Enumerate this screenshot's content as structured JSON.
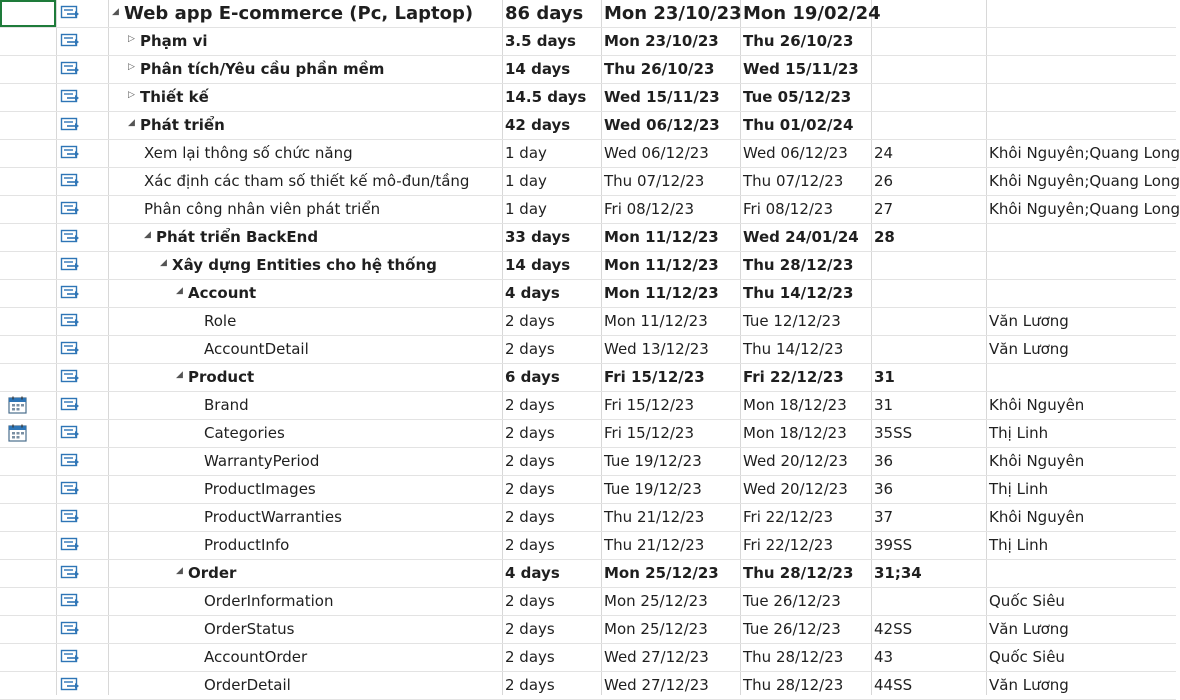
{
  "tasks": [
    {
      "name": "Web app E-commerce (Pc, Laptop)",
      "duration": "86 days",
      "start": "Mon 23/10/23",
      "finish": "Mon 19/02/24",
      "pred": "",
      "res": "",
      "summary": true,
      "toggle": "◢",
      "level": 0
    },
    {
      "name": "Phạm vi",
      "duration": "3.5 days",
      "start": "Mon 23/10/23",
      "finish": "Thu 26/10/23",
      "pred": "",
      "res": "",
      "summary": true,
      "toggle": "▷",
      "level": 1
    },
    {
      "name": "Phân tích/Yêu cầu phần mềm",
      "duration": "14 days",
      "start": "Thu 26/10/23",
      "finish": "Wed 15/11/23",
      "pred": "",
      "res": "",
      "summary": true,
      "toggle": "▷",
      "level": 1
    },
    {
      "name": "Thiết kế",
      "duration": "14.5 days",
      "start": "Wed 15/11/23",
      "finish": "Tue 05/12/23",
      "pred": "",
      "res": "",
      "summary": true,
      "toggle": "▷",
      "level": 1
    },
    {
      "name": "Phát triển",
      "duration": "42 days",
      "start": "Wed 06/12/23",
      "finish": "Thu 01/02/24",
      "pred": "",
      "res": "",
      "summary": true,
      "toggle": "◢",
      "level": 1
    },
    {
      "name": "Xem lại thông số chức năng",
      "duration": "1 day",
      "start": "Wed 06/12/23",
      "finish": "Wed 06/12/23",
      "pred": "24",
      "res": "Khôi Nguyên;Quang Long",
      "summary": false,
      "toggle": "",
      "level": 2
    },
    {
      "name": "Xác định các tham số thiết kế mô-đun/tầng",
      "duration": "1 day",
      "start": "Thu 07/12/23",
      "finish": "Thu 07/12/23",
      "pred": "26",
      "res": "Khôi Nguyên;Quang Long",
      "summary": false,
      "toggle": "",
      "level": 2
    },
    {
      "name": "Phân công nhân viên phát triển",
      "duration": "1 day",
      "start": "Fri 08/12/23",
      "finish": "Fri 08/12/23",
      "pred": "27",
      "res": "Khôi Nguyên;Quang Long",
      "summary": false,
      "toggle": "",
      "level": 2
    },
    {
      "name": "Phát triển BackEnd",
      "duration": "33 days",
      "start": "Mon 11/12/23",
      "finish": "Wed 24/01/24",
      "pred": "28",
      "res": "",
      "summary": true,
      "toggle": "◢",
      "level": 2
    },
    {
      "name": "Xây dựng Entities cho hệ thống",
      "duration": "14 days",
      "start": "Mon 11/12/23",
      "finish": "Thu 28/12/23",
      "pred": "",
      "res": "",
      "summary": true,
      "toggle": "◢",
      "level": 3
    },
    {
      "name": "Account",
      "duration": "4 days",
      "start": "Mon 11/12/23",
      "finish": "Thu 14/12/23",
      "pred": "",
      "res": "",
      "summary": true,
      "toggle": "◢",
      "level": 4
    },
    {
      "name": "Role",
      "duration": "2 days",
      "start": "Mon 11/12/23",
      "finish": "Tue 12/12/23",
      "pred": "",
      "res": "Văn Lương",
      "summary": false,
      "toggle": "",
      "level": 5
    },
    {
      "name": "AccountDetail",
      "duration": "2 days",
      "start": "Wed 13/12/23",
      "finish": "Thu 14/12/23",
      "pred": "",
      "res": "Văn Lương",
      "summary": false,
      "toggle": "",
      "level": 5
    },
    {
      "name": "Product",
      "duration": "6 days",
      "start": "Fri 15/12/23",
      "finish": "Fri 22/12/23",
      "pred": "31",
      "res": "",
      "summary": true,
      "toggle": "◢",
      "level": 4
    },
    {
      "name": "Brand",
      "duration": "2 days",
      "start": "Fri 15/12/23",
      "finish": "Mon 18/12/23",
      "pred": "31",
      "res": "Khôi Nguyên",
      "summary": false,
      "toggle": "",
      "level": 5,
      "calendar": true
    },
    {
      "name": "Categories",
      "duration": "2 days",
      "start": "Fri 15/12/23",
      "finish": "Mon 18/12/23",
      "pred": "35SS",
      "res": "Thị Linh",
      "summary": false,
      "toggle": "",
      "level": 5,
      "calendar": true
    },
    {
      "name": "WarrantyPeriod",
      "duration": "2 days",
      "start": "Tue 19/12/23",
      "finish": "Wed 20/12/23",
      "pred": "36",
      "res": "Khôi Nguyên",
      "summary": false,
      "toggle": "",
      "level": 5
    },
    {
      "name": "ProductImages",
      "duration": "2 days",
      "start": "Tue 19/12/23",
      "finish": "Wed 20/12/23",
      "pred": "36",
      "res": "Thị Linh",
      "summary": false,
      "toggle": "",
      "level": 5
    },
    {
      "name": "ProductWarranties",
      "duration": "2 days",
      "start": "Thu 21/12/23",
      "finish": "Fri 22/12/23",
      "pred": "37",
      "res": "Khôi Nguyên",
      "summary": false,
      "toggle": "",
      "level": 5
    },
    {
      "name": "ProductInfo",
      "duration": "2 days",
      "start": "Thu 21/12/23",
      "finish": "Fri 22/12/23",
      "pred": "39SS",
      "res": "Thị Linh",
      "summary": false,
      "toggle": "",
      "level": 5
    },
    {
      "name": "Order",
      "duration": "4 days",
      "start": "Mon 25/12/23",
      "finish": "Thu 28/12/23",
      "pred": "31;34",
      "res": "",
      "summary": true,
      "toggle": "◢",
      "level": 4
    },
    {
      "name": "OrderInformation",
      "duration": "2 days",
      "start": "Mon 25/12/23",
      "finish": "Tue 26/12/23",
      "pred": "",
      "res": "Quốc Siêu",
      "summary": false,
      "toggle": "",
      "level": 5
    },
    {
      "name": "OrderStatus",
      "duration": "2 days",
      "start": "Mon 25/12/23",
      "finish": "Tue 26/12/23",
      "pred": "42SS",
      "res": "Văn Lương",
      "summary": false,
      "toggle": "",
      "level": 5
    },
    {
      "name": "AccountOrder",
      "duration": "2 days",
      "start": "Wed 27/12/23",
      "finish": "Thu 28/12/23",
      "pred": "43",
      "res": "Quốc Siêu",
      "summary": false,
      "toggle": "",
      "level": 5
    },
    {
      "name": "OrderDetail",
      "duration": "2 days",
      "start": "Wed 27/12/23",
      "finish": "Thu 28/12/23",
      "pred": "44SS",
      "res": "Văn Lương",
      "summary": false,
      "toggle": "",
      "level": 5
    }
  ],
  "colors": {
    "mode_icon": "#2e75b6",
    "grid_line": "#e3e3e3",
    "selection": "#1e7b3a"
  },
  "icons": {
    "task_mode": "auto-scheduled-task-icon",
    "indicator": "calendar-icon"
  }
}
